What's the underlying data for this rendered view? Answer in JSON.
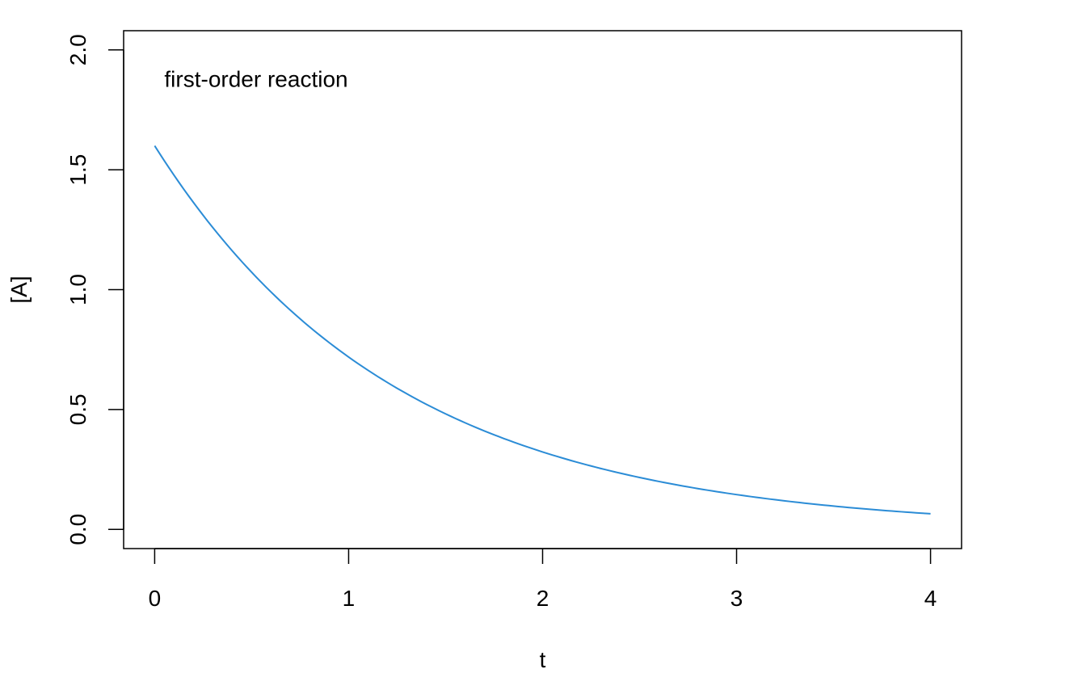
{
  "chart_data": {
    "type": "line",
    "title": "",
    "xlabel": "t",
    "ylabel": "[A]",
    "xlim": [
      -0.16,
      4.16
    ],
    "ylim": [
      -0.08,
      2.08
    ],
    "x_ticks": [
      0,
      1,
      2,
      3,
      4
    ],
    "y_ticks": [
      0.0,
      0.5,
      1.0,
      1.5,
      2.0
    ],
    "x_tick_labels": [
      "0",
      "1",
      "2",
      "3",
      "4"
    ],
    "y_tick_labels": [
      "0.0",
      "0.5",
      "1.0",
      "1.5",
      "2.0"
    ],
    "annotation": {
      "text": "first-order reaction",
      "x": 0.05,
      "y": 1.88
    },
    "grid": false,
    "series": [
      {
        "color": "#2b8cd6",
        "model": {
          "form": "A0*exp(-k*t)",
          "A0": 1.6,
          "k": 0.8
        },
        "x": [
          0,
          0.25,
          0.5,
          0.75,
          1.0,
          1.25,
          1.5,
          1.75,
          2.0,
          2.25,
          2.5,
          2.75,
          3.0,
          3.25,
          3.5,
          3.75,
          4.0
        ],
        "y": [
          1.6,
          1.31,
          1.073,
          0.878,
          0.719,
          0.589,
          0.482,
          0.395,
          0.323,
          0.264,
          0.217,
          0.177,
          0.145,
          0.119,
          0.097,
          0.08,
          0.065
        ]
      }
    ]
  }
}
